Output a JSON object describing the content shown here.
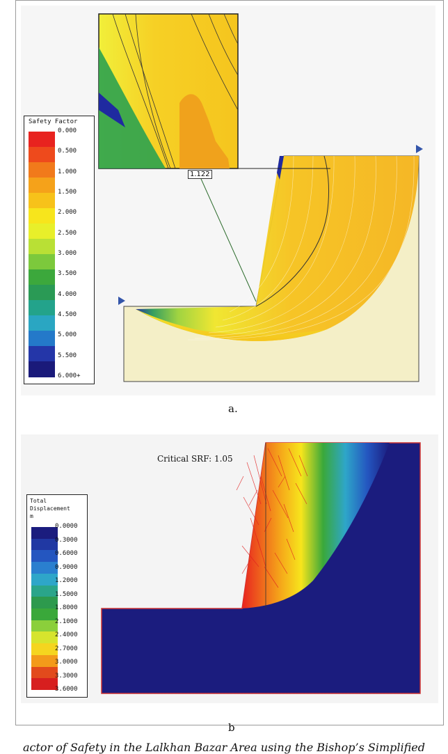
{
  "panel_a": {
    "legend_title": "Safety Factor",
    "legend_values": [
      "0.000",
      "0.500",
      "1.000",
      "1.500",
      "2.000",
      "2.500",
      "3.000",
      "3.500",
      "4.000",
      "4.500",
      "5.000",
      "5.500",
      "6.000+"
    ],
    "legend_colors": [
      "#e8231f",
      "#ee4a1c",
      "#f17a1b",
      "#f5a21a",
      "#f7c21a",
      "#f7e51c",
      "#e8ef2a",
      "#b9e035",
      "#7cc93c",
      "#3ca83c",
      "#2a9a55",
      "#23a38b",
      "#2aa6c2",
      "#2479c9",
      "#2436a8",
      "#1a1a7a"
    ],
    "critical_fs": "1.122",
    "label": "a."
  },
  "panel_b": {
    "legend_title": "Total\nDisplacement\nm",
    "legend_values": [
      "0.0000",
      "0.3000",
      "0.6000",
      "0.9000",
      "1.2000",
      "1.5000",
      "1.8000",
      "2.1000",
      "2.4000",
      "2.7000",
      "3.0000",
      "3.3000",
      "3.6000"
    ],
    "legend_colors": [
      "#1b1c7e",
      "#2038a3",
      "#2456c0",
      "#2a7fcf",
      "#2ea6c9",
      "#2aa58a",
      "#2d9a4d",
      "#3aa83a",
      "#8bcf3b",
      "#d6e42d",
      "#f5d51f",
      "#f39a1a",
      "#e24a1c",
      "#d71f1f"
    ],
    "srf_text": "Critical SRF: 1.05",
    "label": "b"
  },
  "caption": "actor of Safety in the Lalkhan Bazar Area using the Bishop’s Simplified"
}
